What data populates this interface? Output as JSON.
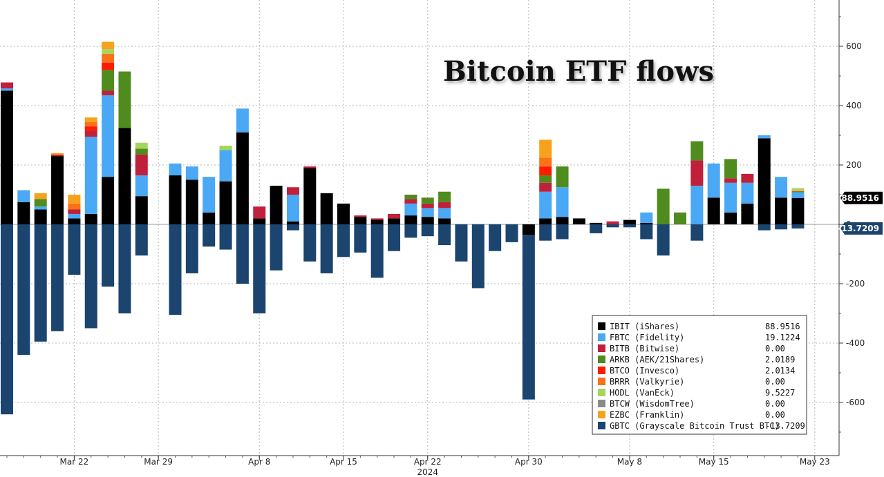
{
  "chart_data": {
    "type": "bar",
    "title": "Bitcoin ETF flows",
    "stacked": true,
    "ylim": [
      -710,
      760
    ],
    "y_ticks": [
      -600,
      -400,
      -200,
      0,
      200,
      400,
      600
    ],
    "grid": true,
    "legend_position": "bottom-right",
    "x_tick_labels": [
      {
        "index": 4,
        "label": "Mar 22"
      },
      {
        "index": 9,
        "label": "Mar 29"
      },
      {
        "index": 15,
        "label": "Apr 8"
      },
      {
        "index": 20,
        "label": "Apr 15"
      },
      {
        "index": 25,
        "label": "Apr 22"
      },
      {
        "index": 31,
        "label": "Apr 30"
      },
      {
        "index": 37,
        "label": "May 8"
      },
      {
        "index": 42,
        "label": "May 15"
      },
      {
        "index": 48,
        "label": "May 23"
      }
    ],
    "x_sublabel": "2024",
    "series": [
      {
        "name": "IBIT (iShares)",
        "color": "#000000",
        "last": "88.9516",
        "values": [
          450,
          75,
          50,
          230,
          20,
          35,
          160,
          325,
          95,
          0,
          165,
          150,
          40,
          145,
          310,
          20,
          130,
          10,
          190,
          105,
          70,
          25,
          15,
          20,
          30,
          25,
          20,
          0,
          0,
          0,
          0,
          -35,
          20,
          25,
          20,
          5,
          0,
          15,
          5,
          0,
          0,
          0,
          90,
          40,
          70,
          290,
          90,
          89
        ]
      },
      {
        "name": "FBTC (Fidelity)",
        "color": "#4aa8f5",
        "last": "19.1224",
        "values": [
          8,
          40,
          10,
          0,
          15,
          260,
          275,
          0,
          70,
          0,
          40,
          45,
          120,
          105,
          80,
          0,
          0,
          90,
          0,
          0,
          0,
          0,
          0,
          0,
          40,
          30,
          35,
          0,
          0,
          0,
          0,
          0,
          90,
          100,
          0,
          0,
          0,
          0,
          35,
          0,
          0,
          130,
          115,
          100,
          70,
          10,
          70,
          19
        ]
      },
      {
        "name": "BITB (Bitwise)",
        "color": "#c0203a",
        "last": "0.00",
        "values": [
          20,
          0,
          0,
          5,
          15,
          20,
          15,
          0,
          70,
          0,
          0,
          0,
          0,
          0,
          0,
          40,
          0,
          25,
          5,
          0,
          0,
          5,
          5,
          15,
          15,
          15,
          20,
          0,
          0,
          0,
          0,
          0,
          30,
          0,
          0,
          0,
          10,
          0,
          0,
          0,
          0,
          85,
          0,
          15,
          30,
          0,
          0,
          0
        ]
      },
      {
        "name": "ARKB (AEK/21Shares)",
        "color": "#4f8c1d",
        "last": "2.0189",
        "values": [
          0,
          0,
          25,
          0,
          0,
          0,
          70,
          190,
          20,
          0,
          0,
          0,
          0,
          0,
          0,
          0,
          0,
          0,
          0,
          0,
          0,
          0,
          0,
          0,
          15,
          20,
          35,
          0,
          0,
          0,
          0,
          0,
          25,
          70,
          0,
          0,
          0,
          0,
          0,
          120,
          40,
          65,
          0,
          65,
          0,
          0,
          0,
          2
        ]
      },
      {
        "name": "BTCO (Invesco)",
        "color": "#ff1a00",
        "last": "2.0134",
        "values": [
          0,
          0,
          0,
          0,
          0,
          15,
          25,
          0,
          0,
          0,
          0,
          0,
          0,
          0,
          0,
          0,
          0,
          0,
          0,
          0,
          0,
          0,
          0,
          0,
          0,
          0,
          0,
          0,
          0,
          0,
          0,
          0,
          30,
          0,
          0,
          0,
          0,
          0,
          0,
          0,
          0,
          0,
          0,
          0,
          0,
          0,
          0,
          2
        ]
      },
      {
        "name": "BRRR (Valkyrie)",
        "color": "#f97218",
        "last": "0.00",
        "values": [
          0,
          0,
          0,
          0,
          20,
          15,
          30,
          0,
          0,
          0,
          0,
          0,
          0,
          0,
          0,
          0,
          0,
          0,
          0,
          0,
          0,
          0,
          0,
          0,
          0,
          0,
          0,
          0,
          0,
          0,
          0,
          0,
          30,
          0,
          0,
          0,
          0,
          0,
          0,
          0,
          0,
          0,
          0,
          0,
          0,
          0,
          0,
          0
        ]
      },
      {
        "name": "HODL (VanEck)",
        "color": "#a4d65e",
        "last": "9.5227",
        "values": [
          0,
          0,
          0,
          0,
          0,
          0,
          15,
          0,
          20,
          0,
          0,
          0,
          0,
          15,
          0,
          0,
          0,
          0,
          0,
          0,
          0,
          0,
          0,
          0,
          0,
          0,
          0,
          0,
          0,
          0,
          0,
          0,
          0,
          0,
          0,
          0,
          0,
          0,
          0,
          0,
          0,
          0,
          0,
          0,
          0,
          0,
          0,
          10
        ]
      },
      {
        "name": "BTCW (WisdomTree)",
        "color": "#8a8a8a",
        "last": "0.00",
        "values": [
          0,
          0,
          0,
          0,
          0,
          0,
          0,
          0,
          0,
          0,
          0,
          0,
          0,
          0,
          0,
          0,
          0,
          0,
          0,
          0,
          0,
          0,
          0,
          0,
          0,
          0,
          0,
          0,
          0,
          0,
          0,
          0,
          0,
          0,
          0,
          0,
          0,
          0,
          0,
          0,
          0,
          0,
          0,
          0,
          0,
          0,
          0,
          0
        ]
      },
      {
        "name": "EZBC (Franklin)",
        "color": "#f7a21c",
        "last": "0.00",
        "values": [
          0,
          0,
          20,
          5,
          30,
          15,
          25,
          0,
          0,
          0,
          0,
          0,
          0,
          0,
          0,
          0,
          0,
          0,
          0,
          0,
          0,
          0,
          0,
          0,
          0,
          0,
          0,
          0,
          0,
          0,
          0,
          0,
          60,
          0,
          0,
          0,
          0,
          0,
          0,
          0,
          0,
          0,
          0,
          0,
          0,
          0,
          0,
          0
        ]
      },
      {
        "name": "GBTC (Grayscale Bitcoin Trust BTC)",
        "color": "#1b446e",
        "last": "-13.7209",
        "values": [
          -640,
          -440,
          -395,
          -360,
          -170,
          -350,
          -210,
          -300,
          -105,
          0,
          -305,
          -165,
          -75,
          -85,
          -200,
          -300,
          -155,
          -20,
          -125,
          -165,
          -110,
          -95,
          -180,
          -90,
          -45,
          -40,
          -70,
          -125,
          -215,
          -90,
          -60,
          -555,
          -55,
          -50,
          0,
          -30,
          -10,
          -10,
          -50,
          -105,
          0,
          -55,
          0,
          0,
          0,
          -20,
          -17,
          -14
        ]
      }
    ],
    "value_tags": [
      {
        "text": "88.9516",
        "value": 88.9516,
        "bg": "#000000",
        "fg": "#ffffff"
      },
      {
        "text": "-13.7209",
        "value": -13.7209,
        "bg": "#1b446e",
        "fg": "#ffffff"
      }
    ]
  }
}
